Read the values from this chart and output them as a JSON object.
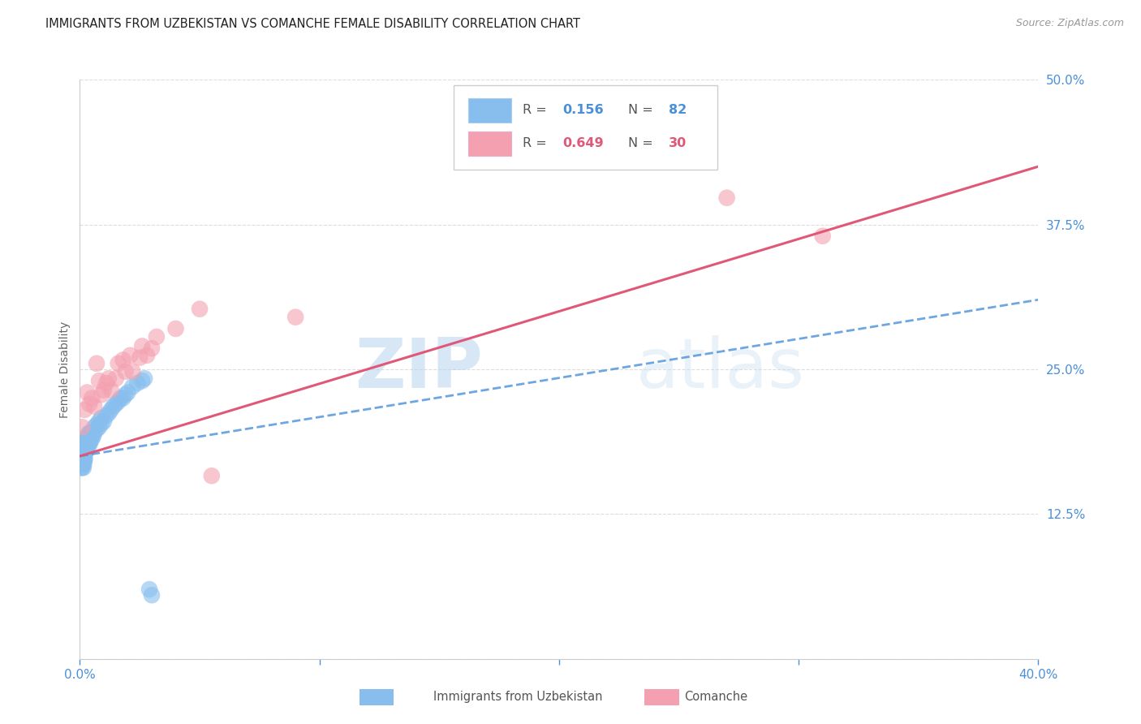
{
  "title": "IMMIGRANTS FROM UZBEKISTAN VS COMANCHE FEMALE DISABILITY CORRELATION CHART",
  "source_text": "Source: ZipAtlas.com",
  "ylabel": "Female Disability",
  "legend_label1": "Immigrants from Uzbekistan",
  "legend_label2": "Comanche",
  "legend_R1": "0.156",
  "legend_N1": "82",
  "legend_R2": "0.649",
  "legend_N2": "30",
  "xlim": [
    0.0,
    0.4
  ],
  "ylim": [
    0.0,
    0.5
  ],
  "xticks": [
    0.0,
    0.1,
    0.2,
    0.3,
    0.4
  ],
  "yticks": [
    0.0,
    0.125,
    0.25,
    0.375,
    0.5
  ],
  "color_uzbek": "#87BEEE",
  "color_comanche": "#F4A0B0",
  "color_uzbek_line": "#4A90D9",
  "color_comanche_line": "#E05878",
  "color_ticks": "#4A90D9",
  "background": "#FFFFFF",
  "watermark_zip": "ZIP",
  "watermark_atlas": "atlas",
  "uzbek_x": [
    0.0005,
    0.0005,
    0.0007,
    0.0008,
    0.0009,
    0.001,
    0.001,
    0.001,
    0.001,
    0.0012,
    0.0012,
    0.0013,
    0.0013,
    0.0014,
    0.0015,
    0.0015,
    0.0015,
    0.0016,
    0.0016,
    0.0017,
    0.0017,
    0.0018,
    0.0018,
    0.0018,
    0.0019,
    0.0019,
    0.002,
    0.002,
    0.002,
    0.002,
    0.0021,
    0.0022,
    0.0022,
    0.0023,
    0.0024,
    0.0025,
    0.0025,
    0.0026,
    0.0027,
    0.0028,
    0.003,
    0.003,
    0.003,
    0.0032,
    0.0033,
    0.0035,
    0.0035,
    0.0036,
    0.0038,
    0.004,
    0.004,
    0.0042,
    0.0045,
    0.0045,
    0.005,
    0.005,
    0.0055,
    0.006,
    0.006,
    0.007,
    0.007,
    0.008,
    0.008,
    0.009,
    0.009,
    0.01,
    0.011,
    0.012,
    0.013,
    0.014,
    0.015,
    0.016,
    0.017,
    0.018,
    0.019,
    0.02,
    0.022,
    0.024,
    0.026,
    0.027,
    0.029,
    0.03
  ],
  "uzbek_y": [
    0.17,
    0.165,
    0.172,
    0.168,
    0.175,
    0.178,
    0.182,
    0.17,
    0.165,
    0.175,
    0.168,
    0.172,
    0.18,
    0.175,
    0.182,
    0.17,
    0.165,
    0.178,
    0.185,
    0.172,
    0.168,
    0.18,
    0.175,
    0.185,
    0.172,
    0.178,
    0.182,
    0.175,
    0.188,
    0.172,
    0.18,
    0.178,
    0.185,
    0.182,
    0.185,
    0.18,
    0.188,
    0.183,
    0.185,
    0.188,
    0.182,
    0.188,
    0.192,
    0.185,
    0.19,
    0.185,
    0.192,
    0.19,
    0.195,
    0.185,
    0.192,
    0.195,
    0.188,
    0.195,
    0.19,
    0.195,
    0.192,
    0.195,
    0.2,
    0.198,
    0.202,
    0.2,
    0.205,
    0.203,
    0.208,
    0.205,
    0.21,
    0.212,
    0.215,
    0.218,
    0.22,
    0.222,
    0.225,
    0.225,
    0.228,
    0.23,
    0.235,
    0.238,
    0.24,
    0.242,
    0.06,
    0.055
  ],
  "comanche_x": [
    0.001,
    0.002,
    0.003,
    0.004,
    0.005,
    0.006,
    0.007,
    0.008,
    0.009,
    0.01,
    0.011,
    0.012,
    0.013,
    0.015,
    0.016,
    0.018,
    0.019,
    0.021,
    0.022,
    0.025,
    0.026,
    0.028,
    0.03,
    0.032,
    0.04,
    0.05,
    0.055,
    0.09,
    0.27,
    0.31
  ],
  "comanche_y": [
    0.2,
    0.215,
    0.23,
    0.22,
    0.225,
    0.218,
    0.255,
    0.24,
    0.228,
    0.232,
    0.238,
    0.242,
    0.232,
    0.242,
    0.255,
    0.258,
    0.248,
    0.262,
    0.248,
    0.26,
    0.27,
    0.262,
    0.268,
    0.278,
    0.285,
    0.302,
    0.158,
    0.295,
    0.398,
    0.365
  ],
  "grid_color": "#DDDDDD"
}
